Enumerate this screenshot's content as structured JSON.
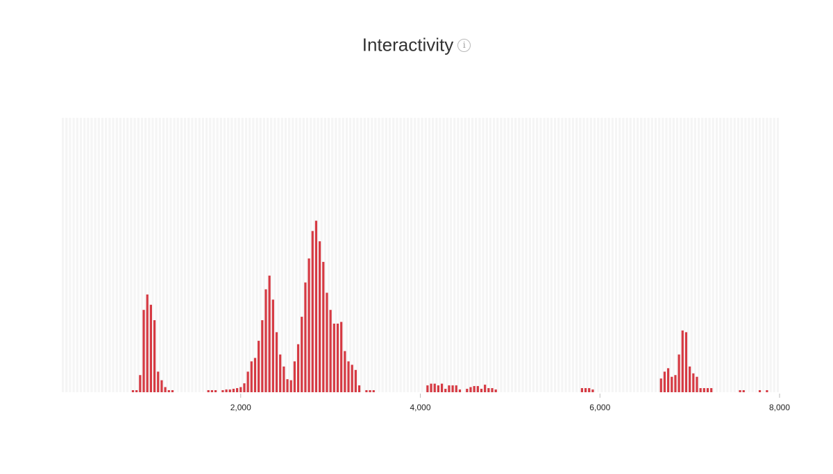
{
  "header": {
    "title": "Interactivity",
    "info_icon": "info-icon",
    "info_glyph": "i"
  },
  "chart_data": {
    "type": "bar",
    "title": "Interactivity",
    "xlabel": "",
    "ylabel": "",
    "xlim": [
      0,
      8000
    ],
    "ylim": [
      0,
      80
    ],
    "bin_width": 40,
    "grid": false,
    "x_ticks": [
      2000,
      4000,
      6000,
      8000
    ],
    "x_tick_labels": [
      "2,000",
      "4,000",
      "6,000",
      "8,000"
    ],
    "bar_color": "#d63a43",
    "background_bar_color": "#f5f5f5",
    "bins": [
      {
        "x": 780,
        "y": 0.6
      },
      {
        "x": 820,
        "y": 0.6
      },
      {
        "x": 860,
        "y": 5
      },
      {
        "x": 900,
        "y": 24
      },
      {
        "x": 940,
        "y": 28.5
      },
      {
        "x": 980,
        "y": 25.5
      },
      {
        "x": 1020,
        "y": 21
      },
      {
        "x": 1060,
        "y": 6
      },
      {
        "x": 1100,
        "y": 3.5
      },
      {
        "x": 1140,
        "y": 1.5
      },
      {
        "x": 1180,
        "y": 0.6
      },
      {
        "x": 1220,
        "y": 0.6
      },
      {
        "x": 1620,
        "y": 0.6
      },
      {
        "x": 1660,
        "y": 0.6
      },
      {
        "x": 1700,
        "y": 0.6
      },
      {
        "x": 1780,
        "y": 0.6
      },
      {
        "x": 1820,
        "y": 0.8
      },
      {
        "x": 1860,
        "y": 0.8
      },
      {
        "x": 1900,
        "y": 1
      },
      {
        "x": 1940,
        "y": 1.2
      },
      {
        "x": 1980,
        "y": 1.5
      },
      {
        "x": 2020,
        "y": 2.6
      },
      {
        "x": 2060,
        "y": 6
      },
      {
        "x": 2100,
        "y": 9
      },
      {
        "x": 2140,
        "y": 10
      },
      {
        "x": 2180,
        "y": 15
      },
      {
        "x": 2220,
        "y": 21
      },
      {
        "x": 2260,
        "y": 30
      },
      {
        "x": 2300,
        "y": 34
      },
      {
        "x": 2340,
        "y": 27
      },
      {
        "x": 2380,
        "y": 17.5
      },
      {
        "x": 2420,
        "y": 11
      },
      {
        "x": 2460,
        "y": 7.5
      },
      {
        "x": 2500,
        "y": 3.8
      },
      {
        "x": 2540,
        "y": 3.5
      },
      {
        "x": 2580,
        "y": 9
      },
      {
        "x": 2620,
        "y": 14
      },
      {
        "x": 2660,
        "y": 22
      },
      {
        "x": 2700,
        "y": 32
      },
      {
        "x": 2740,
        "y": 39
      },
      {
        "x": 2780,
        "y": 47
      },
      {
        "x": 2820,
        "y": 50
      },
      {
        "x": 2860,
        "y": 44
      },
      {
        "x": 2900,
        "y": 38
      },
      {
        "x": 2940,
        "y": 29
      },
      {
        "x": 2980,
        "y": 24
      },
      {
        "x": 3020,
        "y": 20
      },
      {
        "x": 3060,
        "y": 20
      },
      {
        "x": 3100,
        "y": 20.5
      },
      {
        "x": 3140,
        "y": 12
      },
      {
        "x": 3180,
        "y": 9
      },
      {
        "x": 3220,
        "y": 8
      },
      {
        "x": 3260,
        "y": 6.5
      },
      {
        "x": 3300,
        "y": 2
      },
      {
        "x": 3380,
        "y": 0.6
      },
      {
        "x": 3420,
        "y": 0.6
      },
      {
        "x": 3460,
        "y": 0.6
      },
      {
        "x": 4060,
        "y": 2
      },
      {
        "x": 4100,
        "y": 2.5
      },
      {
        "x": 4140,
        "y": 2.5
      },
      {
        "x": 4180,
        "y": 2
      },
      {
        "x": 4220,
        "y": 2.5
      },
      {
        "x": 4260,
        "y": 1
      },
      {
        "x": 4300,
        "y": 2
      },
      {
        "x": 4340,
        "y": 2
      },
      {
        "x": 4380,
        "y": 2
      },
      {
        "x": 4420,
        "y": 0.8
      },
      {
        "x": 4500,
        "y": 1
      },
      {
        "x": 4540,
        "y": 1.5
      },
      {
        "x": 4580,
        "y": 1.8
      },
      {
        "x": 4620,
        "y": 1.8
      },
      {
        "x": 4660,
        "y": 1
      },
      {
        "x": 4700,
        "y": 2.2
      },
      {
        "x": 4740,
        "y": 1.2
      },
      {
        "x": 4780,
        "y": 1.2
      },
      {
        "x": 4820,
        "y": 0.8
      },
      {
        "x": 5780,
        "y": 1.2
      },
      {
        "x": 5820,
        "y": 1.2
      },
      {
        "x": 5860,
        "y": 1.2
      },
      {
        "x": 5900,
        "y": 0.8
      },
      {
        "x": 6660,
        "y": 4
      },
      {
        "x": 6700,
        "y": 6
      },
      {
        "x": 6740,
        "y": 7
      },
      {
        "x": 6780,
        "y": 4.5
      },
      {
        "x": 6820,
        "y": 5
      },
      {
        "x": 6860,
        "y": 11
      },
      {
        "x": 6900,
        "y": 18
      },
      {
        "x": 6940,
        "y": 17.5
      },
      {
        "x": 6980,
        "y": 7.5
      },
      {
        "x": 7020,
        "y": 5.5
      },
      {
        "x": 7060,
        "y": 4.5
      },
      {
        "x": 7100,
        "y": 1.2
      },
      {
        "x": 7140,
        "y": 1.2
      },
      {
        "x": 7180,
        "y": 1.2
      },
      {
        "x": 7220,
        "y": 1.2
      },
      {
        "x": 7540,
        "y": 0.6
      },
      {
        "x": 7580,
        "y": 0.6
      },
      {
        "x": 7760,
        "y": 0.6
      },
      {
        "x": 7840,
        "y": 0.6
      }
    ]
  }
}
